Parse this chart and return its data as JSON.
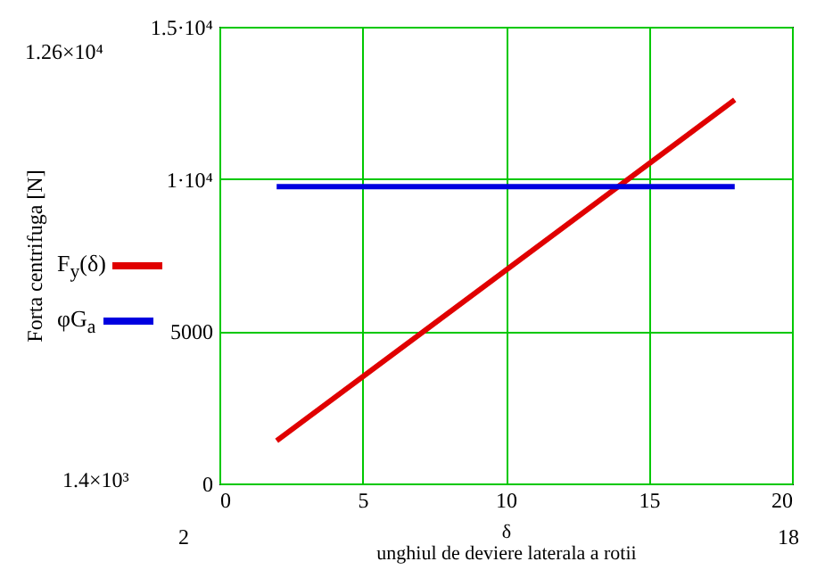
{
  "chart_data": {
    "type": "line",
    "xlabel": "δ\nunghiul de deviere laterala a rotii",
    "ylabel": "Forta centrifuga [N]",
    "x": [
      2,
      18
    ],
    "series": [
      {
        "name": "F$_{y}$(δ)",
        "color": "#e00000",
        "values": [
          1400,
          12600
        ]
      },
      {
        "name": "φG$_{a}$",
        "color": "#0000e0",
        "values": [
          9750,
          9750
        ]
      }
    ],
    "xlim": [
      0,
      20
    ],
    "xticks": [
      0,
      5,
      10,
      15,
      20
    ],
    "ylim": [
      0,
      15000
    ],
    "yticks": [
      0,
      5000,
      {
        "value": 10000,
        "label": "1·10⁴"
      },
      {
        "value": 15000,
        "label": "1.5·10⁴"
      }
    ],
    "grid": true,
    "legend": "left",
    "annotations": [
      "1.26×10⁴",
      "1.4×10³",
      "2",
      "18"
    ]
  }
}
